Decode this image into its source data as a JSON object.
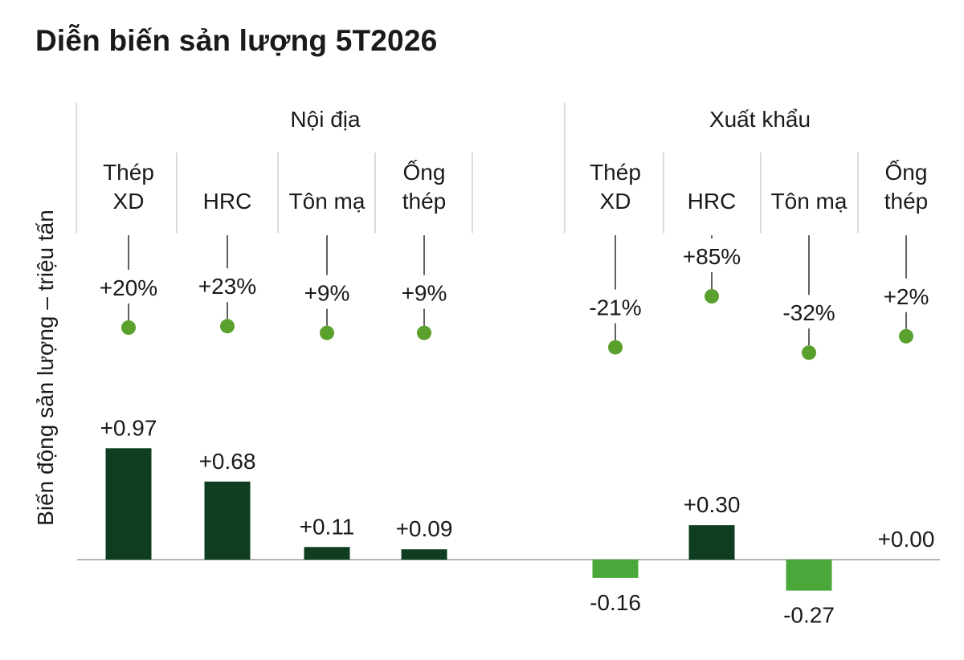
{
  "title": "Diễn biến sản lượng 5T2026",
  "chart_data": {
    "type": "bar",
    "ylabel": "Biến động sản lượng – triệu tấn",
    "groups": [
      {
        "name": "Nội địa",
        "categories": [
          {
            "line1": "Thép",
            "line2": "XD",
            "value": 0.97,
            "value_label": "+0.97",
            "pct": 20,
            "pct_label": "+20%"
          },
          {
            "line1": "",
            "line2": "HRC",
            "value": 0.68,
            "value_label": "+0.68",
            "pct": 23,
            "pct_label": "+23%"
          },
          {
            "line1": "",
            "line2": "Tôn mạ",
            "value": 0.11,
            "value_label": "+0.11",
            "pct": 9,
            "pct_label": "+9%"
          },
          {
            "line1": "Ống",
            "line2": "thép",
            "value": 0.09,
            "value_label": "+0.09",
            "pct": 9,
            "pct_label": "+9%"
          }
        ]
      },
      {
        "name": "Xuất khẩu",
        "categories": [
          {
            "line1": "Thép",
            "line2": "XD",
            "value": -0.16,
            "value_label": "-0.16",
            "pct": -21,
            "pct_label": "-21%"
          },
          {
            "line1": "",
            "line2": "HRC",
            "value": 0.3,
            "value_label": "+0.30",
            "pct": 85,
            "pct_label": "+85%"
          },
          {
            "line1": "",
            "line2": "Tôn mạ",
            "value": -0.27,
            "value_label": "-0.27",
            "pct": -32,
            "pct_label": "-32%"
          },
          {
            "line1": "Ống",
            "line2": "thép",
            "value": 0.0,
            "value_label": "+0.00",
            "pct": 2,
            "pct_label": "+2%"
          }
        ]
      }
    ],
    "colors": {
      "positive_bar": "#0f3d20",
      "negative_bar": "#4aa83a",
      "dot": "#5aa02c",
      "separator": "#cfcfcf",
      "axis": "#9a9a9a"
    }
  }
}
